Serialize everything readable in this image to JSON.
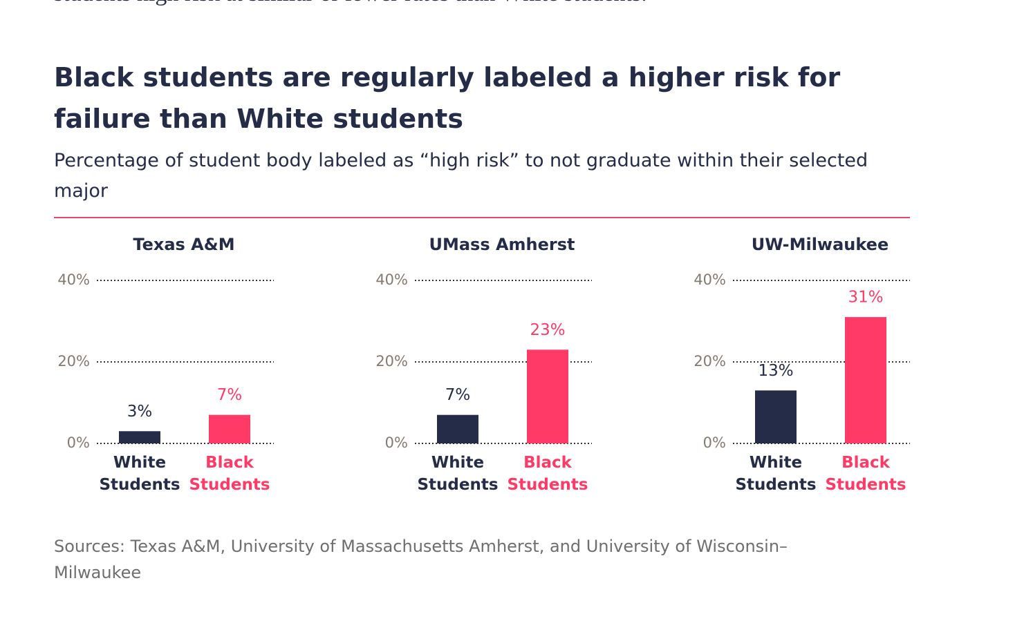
{
  "intro_text": "students high risk at similar or lower rates than White students.",
  "title": "Black students are regularly labeled a higher risk for failure than White students",
  "subtitle": "Percentage of student body labeled as “high risk” to not graduate within their selected major",
  "source": "Sources: Texas A&M, University of Massachusetts Amherst, and University of Wisconsin–Milwaukee",
  "chart_data": [
    {
      "type": "bar",
      "title": "Texas A&M",
      "categories": [
        "White Students",
        "Black Students"
      ],
      "values": [
        3,
        7
      ],
      "value_labels": [
        "3%",
        "7%"
      ],
      "colors": [
        "#252c48",
        "#ff3a66"
      ],
      "ylim": [
        0,
        40
      ],
      "yticks": [
        {
          "value": 0,
          "label": "0%"
        },
        {
          "value": 20,
          "label": "20%"
        },
        {
          "value": 40,
          "label": "40%"
        }
      ],
      "grid": true
    },
    {
      "type": "bar",
      "title": "UMass Amherst",
      "categories": [
        "White Students",
        "Black Students"
      ],
      "values": [
        7,
        23
      ],
      "value_labels": [
        "7%",
        "23%"
      ],
      "colors": [
        "#252c48",
        "#ff3a66"
      ],
      "ylim": [
        0,
        40
      ],
      "yticks": [
        {
          "value": 0,
          "label": "0%"
        },
        {
          "value": 20,
          "label": "20%"
        },
        {
          "value": 40,
          "label": "40%"
        }
      ],
      "grid": true
    },
    {
      "type": "bar",
      "title": "UW-Milwaukee",
      "categories": [
        "White Students",
        "Black Students"
      ],
      "values": [
        13,
        31
      ],
      "value_labels": [
        "13%",
        "31%"
      ],
      "colors": [
        "#252c48",
        "#ff3a66"
      ],
      "ylim": [
        0,
        40
      ],
      "yticks": [
        {
          "value": 0,
          "label": "0%"
        },
        {
          "value": 20,
          "label": "20%"
        },
        {
          "value": 40,
          "label": "40%"
        }
      ],
      "grid": true
    }
  ]
}
